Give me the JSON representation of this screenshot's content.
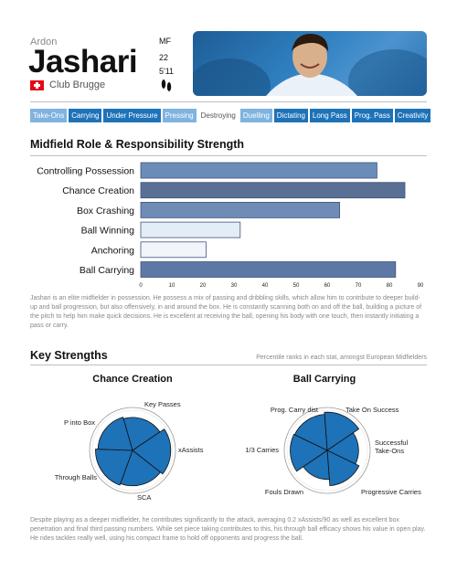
{
  "player": {
    "first_name": "Ardon",
    "last_name": "Jashari",
    "club": "Club Brugge",
    "position": "MF",
    "age": "22",
    "height": "5'11"
  },
  "tags": [
    {
      "label": "Take-Ons",
      "style": "light"
    },
    {
      "label": "Carrying",
      "style": "dark"
    },
    {
      "label": "Under Pressure",
      "style": "dark"
    },
    {
      "label": "Pressing",
      "style": "light"
    },
    {
      "label": "Destroying",
      "style": "plain"
    },
    {
      "label": "Duelling",
      "style": "light"
    },
    {
      "label": "Dictating",
      "style": "dark"
    },
    {
      "label": "Long Pass",
      "style": "dark"
    },
    {
      "label": "Prog. Pass",
      "style": "dark"
    },
    {
      "label": "Creativity",
      "style": "dark"
    }
  ],
  "role_section": {
    "title": "Midfield Role & Responsibility Strength",
    "description": "Jashari is an elite midfielder in possession. He possess a mix of passing and dribbling skills, which allow him to contribute to deeper build-up and ball progression, but also offensively, in and around the box. He is constantly scanning both on and off the ball, building a picture of the pitch to help him make quick decisions. He is excellent at receiving the ball, opening his body with one touch, then instantly initiating a pass or carry."
  },
  "strengths_section": {
    "title": "Key Strengths",
    "subtitle": "Percentile ranks in each stat, amongst European Midfielders",
    "description": "Despite playing as a deeper midfielder, he contributes significantly to the attack, averaging 0.2 xAssists/90 as well as excellent box penetration and final third passing numbers. While set piece taking contributes to this, his through ball efficacy shows his value in open play. He rides tackles really well, using his compact frame to hold off opponents and progress the ball."
  },
  "chart_data": [
    {
      "type": "bar",
      "orientation": "horizontal",
      "title": "Midfield Role & Responsibility Strength",
      "categories": [
        "Controlling Possession",
        "Chance Creation",
        "Box Crashing",
        "Ball Winning",
        "Anchoring",
        "Ball Carrying"
      ],
      "values": [
        76,
        85,
        64,
        32,
        21,
        82
      ],
      "colors": [
        "#6b8bb8",
        "#5a6f94",
        "#6f8bb6",
        "#e3edf7",
        "#f2f5f9",
        "#5e78a6"
      ],
      "xlim": [
        0,
        90
      ],
      "xticks": [
        0,
        10,
        20,
        30,
        40,
        50,
        60,
        70,
        80,
        90
      ]
    },
    {
      "type": "radar",
      "title": "Chance Creation",
      "categories": [
        "Key Passes",
        "xAssists",
        "SCA",
        "Through Balls",
        "P into Box"
      ],
      "values": [
        82,
        95,
        88,
        92,
        86
      ],
      "max": 100,
      "color": "#1e72b8"
    },
    {
      "type": "radar",
      "title": "Ball Carrying",
      "categories": [
        "Take On Success",
        "Successful Take-Ons",
        "Progressive Carries",
        "Fouls Drawn",
        "1/3 Carries",
        "Prog. Carry dist"
      ],
      "values": [
        95,
        78,
        88,
        72,
        92,
        90
      ],
      "max": 100,
      "color": "#1e72b8"
    }
  ]
}
